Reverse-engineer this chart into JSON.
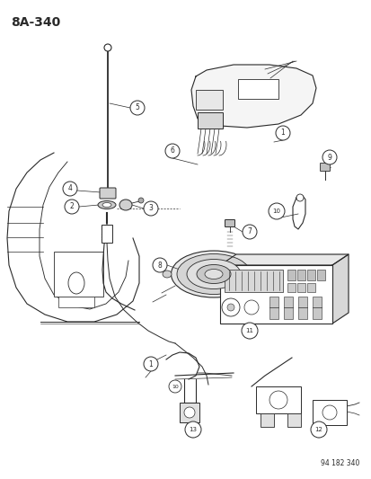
{
  "title": "8A-340",
  "part_number_label": "94 182 340",
  "background_color": "#ffffff",
  "line_color": "#2a2a2a",
  "fig_width": 4.14,
  "fig_height": 5.33,
  "dpi": 100
}
